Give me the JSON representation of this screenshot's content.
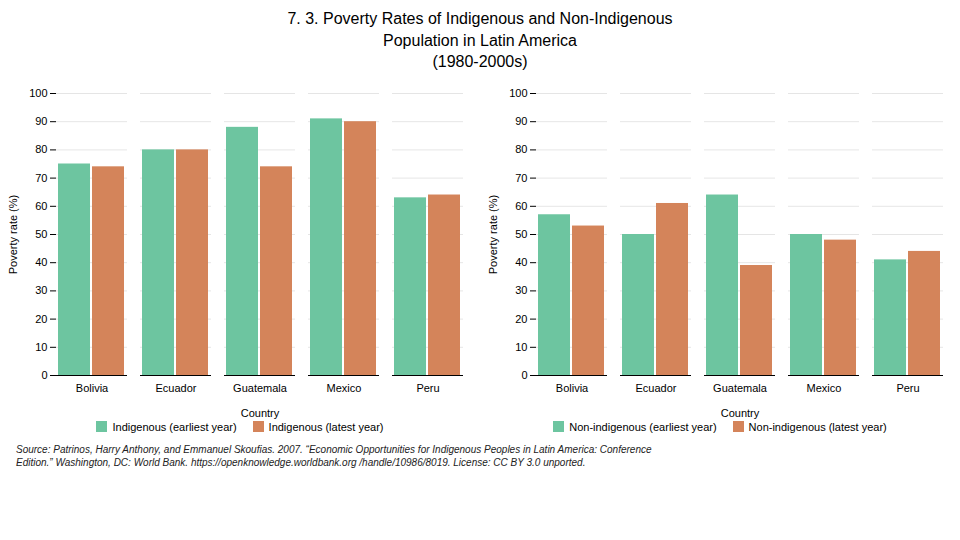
{
  "title": "7. 3. Poverty Rates of Indigenous and Non-Indigenous\nPopulation in Latin America\n(1980-2000s)",
  "annotations": [
    "Source: Patrinos, Harry Anthony, and Emmanuel Skoufias. 2007. “Economic Opportunities for Indigenous Peoples in Latin America: Conference\nEdition.” Washington, DC: World Bank. https://openknowledge.worldbank.org /handle/10986/8019. License: CC BY 3.0 unported."
  ],
  "chart_data": [
    {
      "type": "bar",
      "categories": [
        "Bolivia",
        "Ecuador",
        "Guatemala",
        "Mexico",
        "Peru"
      ],
      "series": [
        {
          "name": "Indigenous (earliest year)",
          "color": "#6DC5A0",
          "values": [
            75,
            80,
            88,
            91,
            63
          ]
        },
        {
          "name": "Indigenous (latest year)",
          "color": "#D4845A",
          "values": [
            74,
            80,
            74,
            90,
            64
          ]
        }
      ],
      "xlabel": "Country",
      "ylabel": "Poverty rate (%)",
      "ylim": [
        0,
        100
      ],
      "yticks": [
        0,
        10,
        20,
        30,
        40,
        50,
        60,
        70,
        80,
        90,
        100
      ],
      "grid": true,
      "legend": "bottom"
    },
    {
      "type": "bar",
      "categories": [
        "Bolivia",
        "Ecuador",
        "Guatemala",
        "Mexico",
        "Peru"
      ],
      "series": [
        {
          "name": "Non-indigenous (earliest year)",
          "color": "#6DC5A0",
          "values": [
            57,
            50,
            64,
            50,
            41
          ]
        },
        {
          "name": "Non-indigenous (latest year)",
          "color": "#D4845A",
          "values": [
            53,
            61,
            39,
            48,
            44
          ]
        }
      ],
      "xlabel": "Country",
      "ylabel": "Poverty rate (%)",
      "ylim": [
        0,
        100
      ],
      "yticks": [
        0,
        10,
        20,
        30,
        40,
        50,
        60,
        70,
        80,
        90,
        100
      ],
      "grid": true,
      "legend": "bottom"
    }
  ]
}
